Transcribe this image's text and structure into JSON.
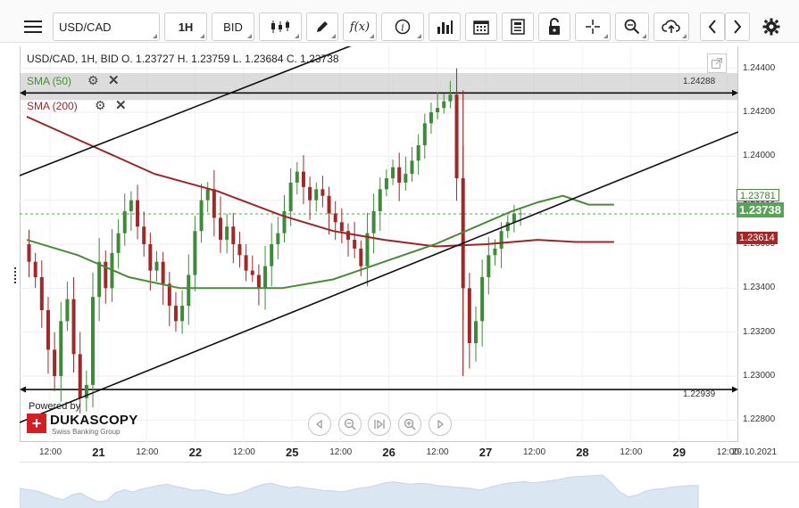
{
  "toolbar": {
    "menu_icon": "hamburger-icon",
    "symbol": "USD/CAD",
    "timeframe": "1H",
    "side": "BID",
    "chart_type_icon": "candles-icon",
    "draw_icon": "pencil-icon",
    "function_label": "f(x)",
    "info_icon": "info-icon",
    "volume_icon": "bars-icon",
    "calendar_icon": "calendar-icon",
    "news_icon": "news-icon",
    "lock_icon": "lock-icon",
    "crosshair_icon": "crosshair-icon",
    "zoom_icon": "zoom-icon",
    "upload_icon": "cloud-upload-icon",
    "prev_icon": "chevron-left-icon",
    "next_icon": "chevron-right-icon",
    "settings_icon": "gear-icon"
  },
  "legend": {
    "ohlc": "USD/CAD, 1H, BID    O. 1.23727 H. 1.23759 L. 1.23684 C. 1.23738",
    "sma50": "SMA (50)",
    "sma200": "SMA (200)"
  },
  "price_tags": {
    "sma50_value": "1.23781",
    "last_price": "1.23738",
    "sma200_value": "1.23614",
    "upper_line": "1.24288",
    "lower_line": "1.22939"
  },
  "branding": {
    "powered_by": "Powered by",
    "logo_mark": "+",
    "logo_name": "DUKASCOPY",
    "logo_sub": "Swiss Banking Group"
  },
  "colors": {
    "bull": "#3f8a3a",
    "bear": "#a02828",
    "sma50": "#4a8a3a",
    "sma200": "#9c2525",
    "last_price_bg": "#5aa15a",
    "sma200_bg": "#a02828"
  },
  "chart_data": {
    "type": "candlestick",
    "title": "USD/CAD, 1H, BID",
    "ylim": [
      1.227,
      1.245
    ],
    "y_ticks": [
      "1.24400",
      "1.24200",
      "1.24000",
      "1.23800",
      "1.23600",
      "1.23400",
      "1.23200",
      "1.23000",
      "1.22800"
    ],
    "x_ticks": [
      {
        "label": "12:00",
        "bold": false
      },
      {
        "label": "21",
        "bold": true
      },
      {
        "label": "12:00",
        "bold": false
      },
      {
        "label": "22",
        "bold": true
      },
      {
        "label": "12:00",
        "bold": false
      },
      {
        "label": "25",
        "bold": true
      },
      {
        "label": "12:00",
        "bold": false
      },
      {
        "label": "26",
        "bold": true
      },
      {
        "label": "12:00",
        "bold": false
      },
      {
        "label": "27",
        "bold": true
      },
      {
        "label": "12:00",
        "bold": false
      },
      {
        "label": "28",
        "bold": true
      },
      {
        "label": "12:00",
        "bold": false
      },
      {
        "label": "29",
        "bold": true
      },
      {
        "label": "12:00",
        "bold": false
      }
    ],
    "current_date_label": "29.10.2021",
    "last_price": 1.23738,
    "horizontal_lines": [
      1.24288,
      1.22939
    ],
    "close_path": [
      1.236,
      1.2352,
      1.2345,
      1.233,
      1.2312,
      1.23,
      1.2325,
      1.2335,
      1.231,
      1.229,
      1.2296,
      1.2336,
      1.2352,
      1.234,
      1.2356,
      1.2365,
      1.2375,
      1.238,
      1.2368,
      1.236,
      1.2348,
      1.2352,
      1.2342,
      1.2332,
      1.2325,
      1.2332,
      1.2346,
      1.2366,
      1.238,
      1.2385,
      1.2372,
      1.2362,
      1.2368,
      1.236,
      1.2355,
      1.2348,
      1.2346,
      1.234,
      1.235,
      1.236,
      1.2365,
      1.2375,
      1.2388,
      1.2393,
      1.2386,
      1.238,
      1.2385,
      1.2382,
      1.2374,
      1.237,
      1.2366,
      1.2362,
      1.2358,
      1.235,
      1.2365,
      1.2375,
      1.2385,
      1.239,
      1.2395,
      1.2388,
      1.2392,
      1.2398,
      1.2405,
      1.2415,
      1.242,
      1.2422,
      1.2425,
      1.2428,
      1.239,
      1.234,
      1.2315,
      1.2325,
      1.2345,
      1.2355,
      1.2358,
      1.2366,
      1.237,
      1.2374,
      1.2374
    ],
    "sma50_points": [
      [
        0,
        1.2362
      ],
      [
        8,
        1.2355
      ],
      [
        16,
        1.2345
      ],
      [
        24,
        1.234
      ],
      [
        32,
        1.234
      ],
      [
        40,
        1.234
      ],
      [
        48,
        1.2344
      ],
      [
        56,
        1.2352
      ],
      [
        64,
        1.236
      ],
      [
        72,
        1.237
      ],
      [
        76,
        1.2375
      ],
      [
        80,
        1.2379
      ],
      [
        84,
        1.2382
      ],
      [
        88,
        1.2378
      ],
      [
        92,
        1.2378
      ]
    ],
    "sma200_points": [
      [
        0,
        1.2418
      ],
      [
        10,
        1.2405
      ],
      [
        20,
        1.2392
      ],
      [
        30,
        1.2384
      ],
      [
        40,
        1.2373
      ],
      [
        48,
        1.2366
      ],
      [
        56,
        1.2362
      ],
      [
        64,
        1.2359
      ],
      [
        72,
        1.236
      ],
      [
        80,
        1.2362
      ],
      [
        86,
        1.2361
      ],
      [
        92,
        1.2361
      ]
    ]
  }
}
